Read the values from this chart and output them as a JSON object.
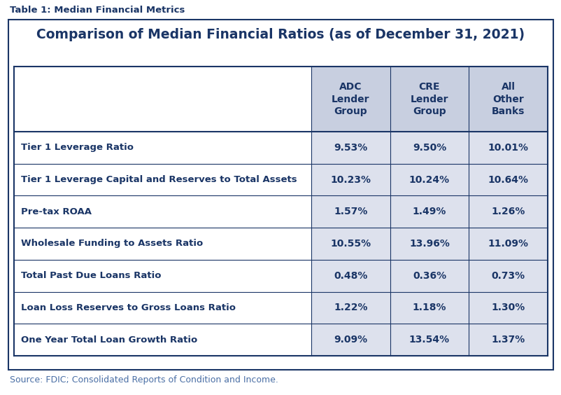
{
  "super_title": "Table 1: Median Financial Metrics",
  "title": "Comparison of Median Financial Ratios (as of December 31, 2021)",
  "source": "Source: FDIC; Consolidated Reports of Condition and Income.",
  "col_headers": [
    "ADC\nLender\nGroup",
    "CRE\nLender\nGroup",
    "All\nOther\nBanks"
  ],
  "row_labels": [
    "Tier 1 Leverage Ratio",
    "Tier 1 Leverage Capital and Reserves to Total Assets",
    "Pre-tax ROAA",
    "Wholesale Funding to Assets Ratio",
    "Total Past Due Loans Ratio",
    "Loan Loss Reserves to Gross Loans Ratio",
    "One Year Total Loan Growth Ratio"
  ],
  "data": [
    [
      "9.53%",
      "9.50%",
      "10.01%"
    ],
    [
      "10.23%",
      "10.24%",
      "10.64%"
    ],
    [
      "1.57%",
      "1.49%",
      "1.26%"
    ],
    [
      "10.55%",
      "13.96%",
      "11.09%"
    ],
    [
      "0.48%",
      "0.36%",
      "0.73%"
    ],
    [
      "1.22%",
      "1.18%",
      "1.30%"
    ],
    [
      "9.09%",
      "13.54%",
      "1.37%"
    ]
  ],
  "header_bg_color": "#c8cfe0",
  "data_col_bg_color": "#dde1ed",
  "dark_blue": "#1a3566",
  "line_color": "#1a3566",
  "super_title_color": "#1a3566",
  "title_color": "#1a3566",
  "source_color": "#4a6fa5",
  "fig_bg_color": "#ffffff",
  "super_title_fontsize": 9.5,
  "title_fontsize": 13.5,
  "header_fontsize": 10,
  "label_fontsize": 9.5,
  "data_fontsize": 10,
  "source_fontsize": 9
}
